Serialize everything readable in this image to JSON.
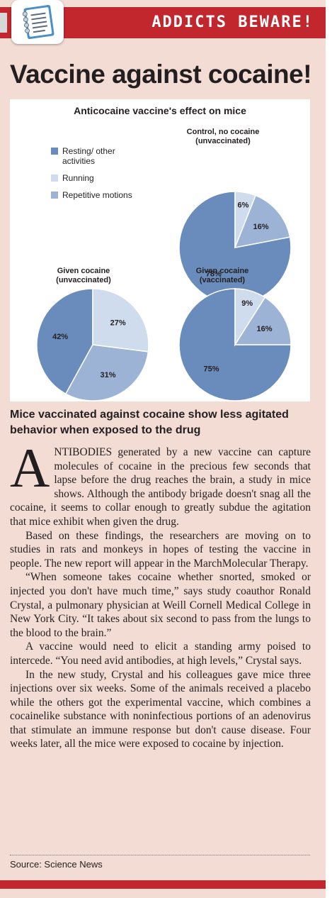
{
  "banner": "ADDICTS BEWARE!",
  "headline": "Vaccine against cocaine!",
  "colors": {
    "resting": "#6a8cbc",
    "running": "#cfdcee",
    "repetitive": "#9db3d6",
    "accent": "#c1272d"
  },
  "chart_data": [
    {
      "type": "pie",
      "title": "Control, no cocaine (unvaccinated)",
      "categories": [
        "Resting/ other activities",
        "Running",
        "Repetitive motions"
      ],
      "values": [
        78,
        6,
        16
      ],
      "labels": [
        "78%",
        "6%",
        "16%"
      ]
    },
    {
      "type": "pie",
      "title": "Given cocaine (unvaccinated)",
      "categories": [
        "Resting/ other activities",
        "Running",
        "Repetitive motions"
      ],
      "values": [
        42,
        27,
        31
      ],
      "labels": [
        "42%",
        "27%",
        "31%"
      ]
    },
    {
      "type": "pie",
      "title": "Given cocaine (vaccinated)",
      "categories": [
        "Resting/ other activities",
        "Running",
        "Repetitive motions"
      ],
      "values": [
        75,
        9,
        16
      ],
      "labels": [
        "75%",
        "9%",
        "16%"
      ]
    }
  ],
  "chart_meta": {
    "title": "Anticocaine vaccine's effect on mice",
    "legend": [
      "Resting/ other activities",
      "Running",
      "Repetitive motions"
    ],
    "legend_position": "top-left"
  },
  "caption": "Mice vaccinated against cocaine show less agitated behavior when exposed to the drug",
  "article": {
    "dropcap": "A",
    "p1": "NTIBODIES generated by a new vaccine can capture molecules of cocaine in the precious few seconds that lapse before the drug reaches the brain, a study in mice shows. Although the antibody brigade doesn't snag all the cocaine, it seems to collar enough to greatly subdue the agitation that mice exhibit when given the drug.",
    "p2": "Based on these findings, the researchers are moving on to studies in rats and monkeys in hopes of testing the vaccine in people. The new report will appear in the MarchMolecular Therapy.",
    "p3": "“When someone takes cocaine  whether snorted, smoked or injected  you don't have much time,” says study coauthor Ronald Crystal, a pulmonary physician at Weill Cornell Medical College in New York City.  “It takes about six second to pass from the lungs to the blood to the brain.”",
    "p4": "A vaccine would need to elicit a standing army poised to intercede. “You need avid antibodies, at high levels,” Crystal says.",
    "p5": "In the new study, Crystal and his colleagues gave mice three injections over six weeks. Some of the animals received a placebo while the others got the experimental vaccine, which combines a cocainelike substance with noninfectious portions of an adenovirus that stimulate an immune response but don't cause disease. Four weeks later, all the mice were exposed to cocaine by injection."
  },
  "source": "Source: Science News"
}
